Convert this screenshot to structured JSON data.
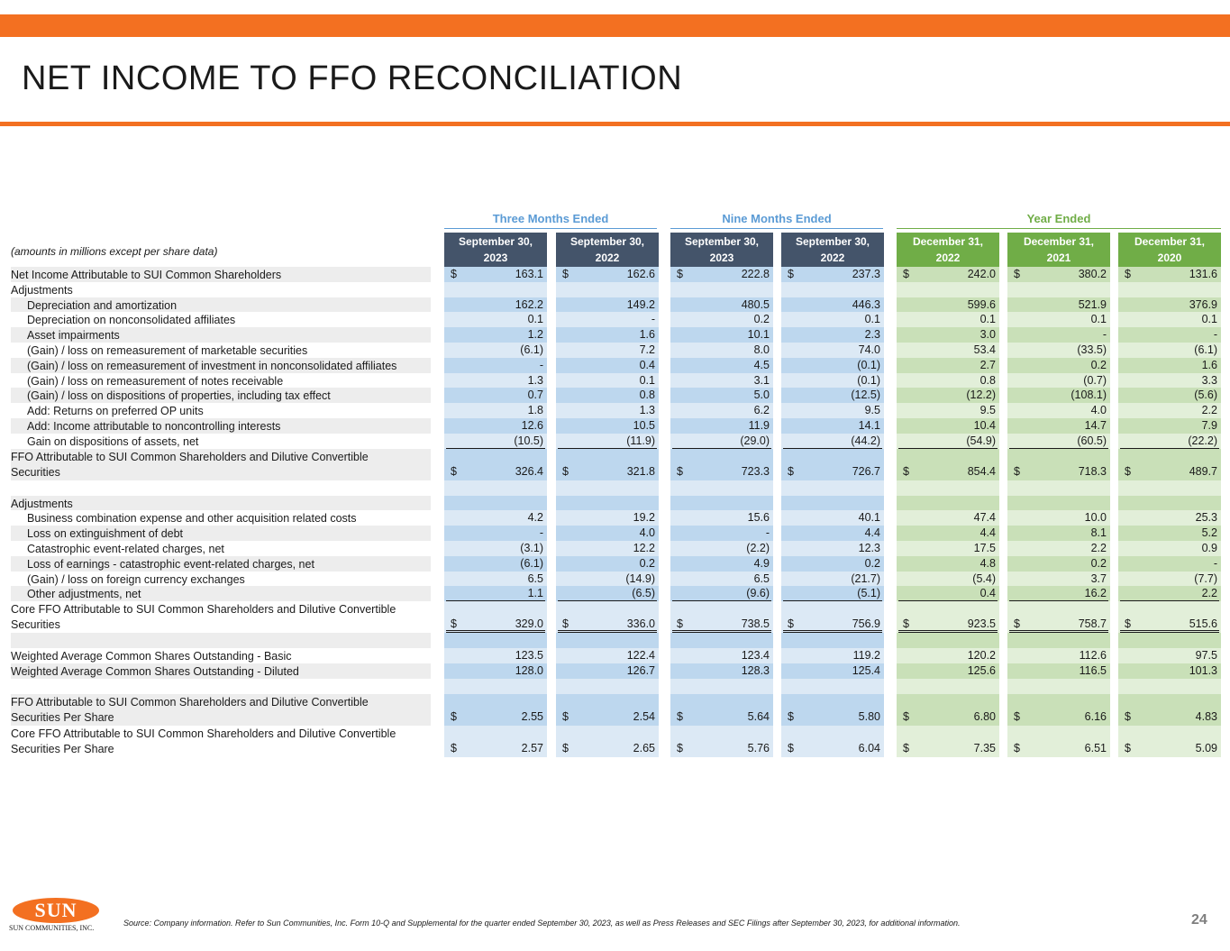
{
  "header": {
    "title": "NET INCOME TO FFO RECONCILIATION",
    "accent_color": "#f37021"
  },
  "table": {
    "units_note": "(amounts in millions except per share data)",
    "groups": [
      {
        "label": "Three Months Ended",
        "color": "#5b9bd5"
      },
      {
        "label": "Nine Months Ended",
        "color": "#5b9bd5"
      },
      {
        "label": "Year Ended",
        "color": "#70ad47"
      }
    ],
    "columns": [
      {
        "line1": "September 30,",
        "line2": "2023"
      },
      {
        "line1": "September 30,",
        "line2": "2022"
      },
      {
        "line1": "September 30,",
        "line2": "2023"
      },
      {
        "line1": "September 30,",
        "line2": "2022"
      },
      {
        "line1": "December 31,",
        "line2": "2022"
      },
      {
        "line1": "December 31,",
        "line2": "2021"
      },
      {
        "line1": "December 31,",
        "line2": "2020"
      }
    ],
    "rows": [
      {
        "label": "Net Income Attributable to SUI Common Shareholders",
        "indent": false,
        "dollar": true,
        "values": [
          "163.1",
          "162.6",
          "222.8",
          "237.3",
          "242.0",
          "380.2",
          "131.6"
        ]
      },
      {
        "label": "Adjustments",
        "indent": false,
        "dollar": false,
        "values": [
          "",
          "",
          "",
          "",
          "",
          "",
          ""
        ]
      },
      {
        "label": "Depreciation and amortization",
        "indent": true,
        "dollar": false,
        "values": [
          "162.2",
          "149.2",
          "480.5",
          "446.3",
          "599.6",
          "521.9",
          "376.9"
        ]
      },
      {
        "label": "Depreciation on nonconsolidated affiliates",
        "indent": true,
        "dollar": false,
        "values": [
          "0.1",
          "-",
          "0.2",
          "0.1",
          "0.1",
          "0.1",
          "0.1"
        ]
      },
      {
        "label": "Asset impairments",
        "indent": true,
        "dollar": false,
        "values": [
          "1.2",
          "1.6",
          "10.1",
          "2.3",
          "3.0",
          "-",
          "-"
        ]
      },
      {
        "label": "(Gain) / loss on remeasurement of marketable securities",
        "indent": true,
        "dollar": false,
        "values": [
          "(6.1)",
          "7.2",
          "8.0",
          "74.0",
          "53.4",
          "(33.5)",
          "(6.1)"
        ]
      },
      {
        "label": "(Gain) / loss on remeasurement of investment in nonconsolidated affiliates",
        "indent": true,
        "dollar": false,
        "values": [
          "-",
          "0.4",
          "4.5",
          "(0.1)",
          "2.7",
          "0.2",
          "1.6"
        ]
      },
      {
        "label": "(Gain) / loss on remeasurement of notes receivable",
        "indent": true,
        "dollar": false,
        "values": [
          "1.3",
          "0.1",
          "3.1",
          "(0.1)",
          "0.8",
          "(0.7)",
          "3.3"
        ]
      },
      {
        "label": "(Gain) / loss on dispositions of properties, including tax effect",
        "indent": true,
        "dollar": false,
        "values": [
          "0.7",
          "0.8",
          "5.0",
          "(12.5)",
          "(12.2)",
          "(108.1)",
          "(5.6)"
        ]
      },
      {
        "label": "Add: Returns on preferred OP units",
        "indent": true,
        "dollar": false,
        "values": [
          "1.8",
          "1.3",
          "6.2",
          "9.5",
          "9.5",
          "4.0",
          "2.2"
        ]
      },
      {
        "label": "Add: Income attributable to noncontrolling interests",
        "indent": true,
        "dollar": false,
        "values": [
          "12.6",
          "10.5",
          "11.9",
          "14.1",
          "10.4",
          "14.7",
          "7.9"
        ]
      },
      {
        "label": "Gain on dispositions of assets, net",
        "indent": true,
        "dollar": false,
        "underline": "single",
        "values": [
          "(10.5)",
          "(11.9)",
          "(29.0)",
          "(44.2)",
          "(54.9)",
          "(60.5)",
          "(22.2)"
        ]
      },
      {
        "label": "FFO Attributable to SUI Common Shareholders and Dilutive Convertible",
        "label2": "Securities",
        "indent": false,
        "dollar": true,
        "values": [
          "326.4",
          "321.8",
          "723.3",
          "726.7",
          "854.4",
          "718.3",
          "489.7"
        ]
      },
      {
        "label": "",
        "indent": false,
        "dollar": false,
        "spacer": true,
        "values": [
          "",
          "",
          "",
          "",
          "",
          "",
          ""
        ]
      },
      {
        "label": "Adjustments",
        "indent": false,
        "dollar": false,
        "values": [
          "",
          "",
          "",
          "",
          "",
          "",
          ""
        ]
      },
      {
        "label": "Business combination expense and other acquisition related costs",
        "indent": true,
        "dollar": false,
        "values": [
          "4.2",
          "19.2",
          "15.6",
          "40.1",
          "47.4",
          "10.0",
          "25.3"
        ]
      },
      {
        "label": "Loss on extinguishment of debt",
        "indent": true,
        "dollar": false,
        "values": [
          "-",
          "4.0",
          "-",
          "4.4",
          "4.4",
          "8.1",
          "5.2"
        ]
      },
      {
        "label": "Catastrophic event-related charges, net",
        "indent": true,
        "dollar": false,
        "values": [
          "(3.1)",
          "12.2",
          "(2.2)",
          "12.3",
          "17.5",
          "2.2",
          "0.9"
        ]
      },
      {
        "label": "Loss of earnings - catastrophic event-related charges, net",
        "indent": true,
        "dollar": false,
        "values": [
          "(6.1)",
          "0.2",
          "4.9",
          "0.2",
          "4.8",
          "0.2",
          "-"
        ]
      },
      {
        "label": "(Gain) / loss on foreign currency exchanges",
        "indent": true,
        "dollar": false,
        "values": [
          "6.5",
          "(14.9)",
          "6.5",
          "(21.7)",
          "(5.4)",
          "3.7",
          "(7.7)"
        ]
      },
      {
        "label": "Other adjustments, net",
        "indent": true,
        "dollar": false,
        "underline": "single",
        "values": [
          "1.1",
          "(6.5)",
          "(9.6)",
          "(5.1)",
          "0.4",
          "16.2",
          "2.2"
        ]
      },
      {
        "label": "Core FFO Attributable to SUI Common Shareholders and Dilutive Convertible",
        "label2": "Securities",
        "indent": false,
        "dollar": true,
        "underline": "double",
        "values": [
          "329.0",
          "336.0",
          "738.5",
          "756.9",
          "923.5",
          "758.7",
          "515.6"
        ]
      },
      {
        "label": "",
        "indent": false,
        "dollar": false,
        "spacer": true,
        "values": [
          "",
          "",
          "",
          "",
          "",
          "",
          ""
        ]
      },
      {
        "label": "Weighted Average Common Shares Outstanding - Basic",
        "indent": false,
        "dollar": false,
        "values": [
          "123.5",
          "122.4",
          "123.4",
          "119.2",
          "120.2",
          "112.6",
          "97.5"
        ]
      },
      {
        "label": "Weighted Average Common Shares Outstanding - Diluted",
        "indent": false,
        "dollar": false,
        "values": [
          "128.0",
          "126.7",
          "128.3",
          "125.4",
          "125.6",
          "116.5",
          "101.3"
        ]
      },
      {
        "label": "",
        "indent": false,
        "dollar": false,
        "spacer": true,
        "values": [
          "",
          "",
          "",
          "",
          "",
          "",
          ""
        ]
      },
      {
        "label": "FFO Attributable to SUI Common Shareholders and Dilutive Convertible",
        "label2": "Securities Per Share",
        "indent": false,
        "dollar": true,
        "values": [
          "2.55",
          "2.54",
          "5.64",
          "5.80",
          "6.80",
          "6.16",
          "4.83"
        ]
      },
      {
        "label": "Core FFO Attributable to SUI Common Shareholders and Dilutive Convertible",
        "label2": "Securities Per Share",
        "indent": false,
        "dollar": true,
        "values": [
          "2.57",
          "2.65",
          "5.76",
          "6.04",
          "7.35",
          "6.51",
          "5.09"
        ]
      }
    ]
  },
  "footer": {
    "logo_text": "SUN",
    "logo_subtext": "SUN COMMUNITIES, INC.",
    "source": "Source: Company information.  Refer to Sun Communities, Inc. Form 10-Q and Supplemental for the quarter ended September 30, 2023, as well as Press Releases and SEC Filings after September 30, 2023, for additional information.",
    "page_number": "24"
  }
}
